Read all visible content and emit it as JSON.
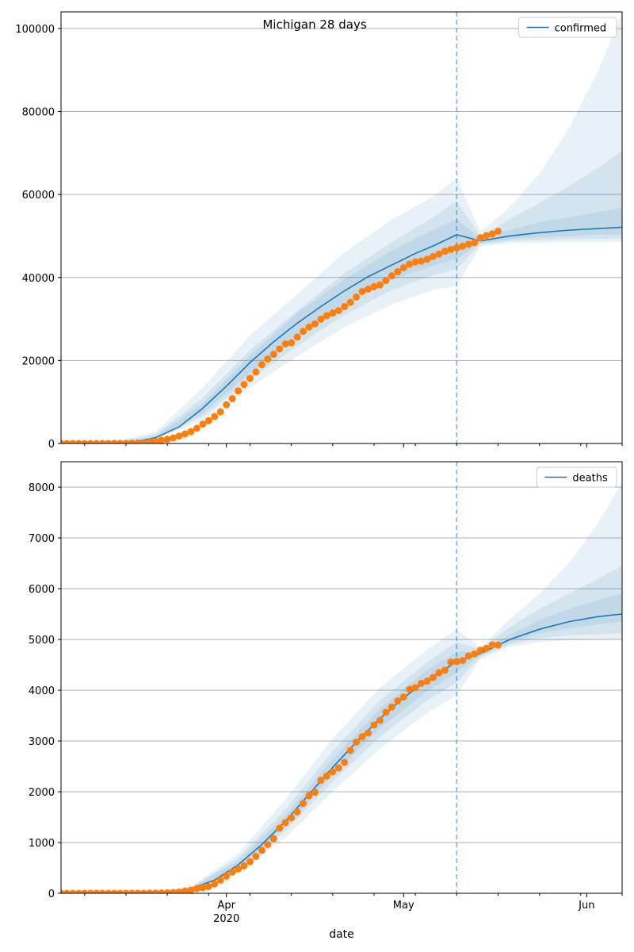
{
  "figure": {
    "title": "Michigan 28 days",
    "xlabel": "date"
  },
  "colors": {
    "model": "#1f77b4",
    "observed": "#ff7f0e",
    "grid": "#b0b0b0",
    "axis": "#000000"
  },
  "chart_data": [
    {
      "type": "line",
      "id": "confirmed",
      "title": "Michigan 28 days",
      "legend": [
        "confirmed"
      ],
      "legend_position": "upper right",
      "ylim": [
        0,
        104000
      ],
      "yticks": [
        0,
        20000,
        40000,
        60000,
        80000,
        100000
      ],
      "xlim": [
        "2020-03-04",
        "2020-06-07"
      ],
      "forecast_start": "2020-05-10",
      "grid": "y",
      "model_series": {
        "name": "confirmed",
        "x": [
          "2020-03-12",
          "2020-03-16",
          "2020-03-20",
          "2020-03-24",
          "2020-03-28",
          "2020-04-01",
          "2020-04-05",
          "2020-04-09",
          "2020-04-13",
          "2020-04-17",
          "2020-04-21",
          "2020-04-25",
          "2020-04-29",
          "2020-05-03",
          "2020-05-06",
          "2020-05-10",
          "2020-05-14",
          "2020-05-19",
          "2020-05-24",
          "2020-05-29",
          "2020-06-03",
          "2020-06-07"
        ],
        "y": [
          0,
          200,
          1400,
          4000,
          8500,
          13800,
          19500,
          24500,
          29000,
          33000,
          36800,
          40200,
          43000,
          45800,
          47600,
          50300,
          48800,
          50000,
          50800,
          51400,
          51800,
          52100
        ]
      },
      "bands": [
        {
          "level": "outer",
          "x": [
            "2020-03-12",
            "2020-03-20",
            "2020-03-28",
            "2020-04-05",
            "2020-04-13",
            "2020-04-21",
            "2020-04-29",
            "2020-05-06",
            "2020-05-10",
            "2020-05-14",
            "2020-05-19",
            "2020-05-24",
            "2020-05-29",
            "2020-06-03",
            "2020-06-07"
          ],
          "lower": [
            0,
            900,
            5500,
            13500,
            21000,
            28000,
            33500,
            37000,
            38000,
            47500,
            48300,
            48400,
            48500,
            48500,
            48600
          ],
          "upper": [
            0,
            2800,
            13500,
            26000,
            36000,
            46000,
            54000,
            59500,
            64000,
            51000,
            57000,
            65000,
            76000,
            90000,
            104000
          ]
        },
        {
          "level": "middle",
          "x": [
            "2020-03-12",
            "2020-03-20",
            "2020-03-28",
            "2020-04-05",
            "2020-04-13",
            "2020-04-21",
            "2020-04-29",
            "2020-05-06",
            "2020-05-10",
            "2020-05-14",
            "2020-05-19",
            "2020-05-24",
            "2020-05-29",
            "2020-06-03",
            "2020-06-07"
          ],
          "lower": [
            0,
            1100,
            6500,
            15500,
            23500,
            31000,
            37000,
            40500,
            42000,
            48000,
            48800,
            49000,
            49200,
            49300,
            49400
          ],
          "upper": [
            0,
            2200,
            11000,
            22500,
            32000,
            41000,
            48500,
            54500,
            58500,
            50000,
            54000,
            58000,
            62000,
            66500,
            70500
          ]
        },
        {
          "level": "inner",
          "x": [
            "2020-03-12",
            "2020-03-20",
            "2020-03-28",
            "2020-04-05",
            "2020-04-13",
            "2020-04-21",
            "2020-04-29",
            "2020-05-06",
            "2020-05-10",
            "2020-05-14",
            "2020-05-19",
            "2020-05-24",
            "2020-05-29",
            "2020-06-03",
            "2020-06-07"
          ],
          "lower": [
            0,
            1200,
            7200,
            17000,
            25500,
            33500,
            39500,
            42800,
            44500,
            48300,
            49200,
            49700,
            50000,
            50300,
            50400
          ],
          "upper": [
            0,
            1700,
            9700,
            21200,
            31500,
            39600,
            46500,
            51500,
            54000,
            49400,
            51500,
            53300,
            54500,
            55800,
            56800
          ]
        }
      ],
      "observed": {
        "start": "2020-03-04",
        "values": [
          0,
          0,
          0,
          0,
          0,
          0,
          0,
          0,
          2,
          12,
          25,
          33,
          53,
          65,
          83,
          334,
          549,
          787,
          1035,
          1329,
          1791,
          2295,
          2856,
          3657,
          4650,
          5488,
          6498,
          7615,
          9315,
          10791,
          12670,
          14225,
          15718,
          17221,
          18970,
          20346,
          21504,
          22783,
          23993,
          24244,
          25635,
          27001,
          28059,
          28809,
          29952,
          30791,
          31424,
          32000,
          32967,
          34015,
          35291,
          36641,
          37203,
          37778,
          38210,
          39262,
          40399,
          41379,
          42356,
          43207,
          43754,
          43950,
          44397,
          45054,
          45646,
          46326,
          46756,
          47138,
          47552,
          48021,
          48391,
          49582,
          50079,
          50492,
          51142
        ]
      }
    },
    {
      "type": "line",
      "id": "deaths",
      "legend": [
        "deaths"
      ],
      "legend_position": "upper right",
      "ylim": [
        0,
        8500
      ],
      "yticks": [
        0,
        1000,
        2000,
        3000,
        4000,
        5000,
        6000,
        7000,
        8000
      ],
      "xlim": [
        "2020-03-04",
        "2020-06-07"
      ],
      "xticks": [
        "Apr",
        "May",
        "Jun"
      ],
      "xtick_dates": [
        "2020-04-01",
        "2020-05-01",
        "2020-06-01"
      ],
      "year_label": "2020",
      "forecast_start": "2020-05-10",
      "grid": "y",
      "model_series": {
        "name": "deaths",
        "x": [
          "2020-03-18",
          "2020-03-22",
          "2020-03-26",
          "2020-03-30",
          "2020-04-03",
          "2020-04-07",
          "2020-04-11",
          "2020-04-15",
          "2020-04-19",
          "2020-04-23",
          "2020-04-27",
          "2020-05-01",
          "2020-05-05",
          "2020-05-10",
          "2020-05-14",
          "2020-05-19",
          "2020-05-24",
          "2020-05-29",
          "2020-06-03",
          "2020-06-07"
        ],
        "y": [
          0,
          20,
          90,
          260,
          560,
          960,
          1420,
          1950,
          2480,
          2980,
          3440,
          3850,
          4200,
          4560,
          4720,
          5000,
          5200,
          5350,
          5450,
          5500
        ]
      },
      "bands": [
        {
          "level": "outer",
          "x": [
            "2020-03-18",
            "2020-03-26",
            "2020-04-03",
            "2020-04-11",
            "2020-04-19",
            "2020-04-27",
            "2020-05-05",
            "2020-05-10",
            "2020-05-14",
            "2020-05-19",
            "2020-05-24",
            "2020-05-29",
            "2020-06-03",
            "2020-06-07"
          ],
          "lower": [
            0,
            60,
            400,
            1100,
            2000,
            2850,
            3550,
            3900,
            4620,
            4850,
            4950,
            4980,
            5000,
            5000
          ],
          "upper": [
            0,
            140,
            780,
            1850,
            3050,
            4050,
            4800,
            5200,
            4840,
            5400,
            5900,
            6500,
            7300,
            8100
          ]
        },
        {
          "level": "middle",
          "x": [
            "2020-03-18",
            "2020-03-26",
            "2020-04-03",
            "2020-04-11",
            "2020-04-19",
            "2020-04-27",
            "2020-05-05",
            "2020-05-10",
            "2020-05-14",
            "2020-05-19",
            "2020-05-24",
            "2020-05-29",
            "2020-06-03",
            "2020-06-07"
          ],
          "lower": [
            0,
            70,
            450,
            1230,
            2200,
            3080,
            3800,
            4150,
            4650,
            4900,
            5030,
            5080,
            5100,
            5120
          ],
          "upper": [
            0,
            120,
            700,
            1650,
            2800,
            3800,
            4550,
            4950,
            4800,
            5250,
            5600,
            5900,
            6200,
            6450
          ]
        },
        {
          "level": "inner",
          "x": [
            "2020-03-18",
            "2020-03-26",
            "2020-04-03",
            "2020-04-11",
            "2020-04-19",
            "2020-04-27",
            "2020-05-05",
            "2020-05-10",
            "2020-05-14",
            "2020-05-19",
            "2020-05-24",
            "2020-05-29",
            "2020-06-03",
            "2020-06-07"
          ],
          "lower": [
            0,
            80,
            490,
            1320,
            2330,
            3250,
            3980,
            4350,
            4680,
            4950,
            5120,
            5220,
            5300,
            5350
          ],
          "upper": [
            0,
            105,
            640,
            1530,
            2640,
            3640,
            4400,
            4750,
            4770,
            5100,
            5380,
            5600,
            5780,
            5900
          ]
        }
      ],
      "observed": {
        "start": "2020-03-04",
        "values": [
          0,
          0,
          0,
          0,
          0,
          0,
          0,
          0,
          0,
          0,
          0,
          0,
          0,
          0,
          0,
          3,
          5,
          8,
          10,
          15,
          24,
          43,
          60,
          92,
          111,
          132,
          184,
          259,
          337,
          417,
          479,
          540,
          624,
          727,
          845,
          959,
          1076,
          1281,
          1392,
          1487,
          1602,
          1768,
          1921,
          1991,
          2227,
          2308,
          2391,
          2468,
          2579,
          2813,
          2977,
          3085,
          3157,
          3315,
          3407,
          3567,
          3670,
          3789,
          3866,
          4020,
          4049,
          4135,
          4179,
          4250,
          4343,
          4393,
          4551,
          4563,
          4584,
          4674,
          4714,
          4787,
          4825,
          4893,
          4891
        ]
      }
    }
  ]
}
